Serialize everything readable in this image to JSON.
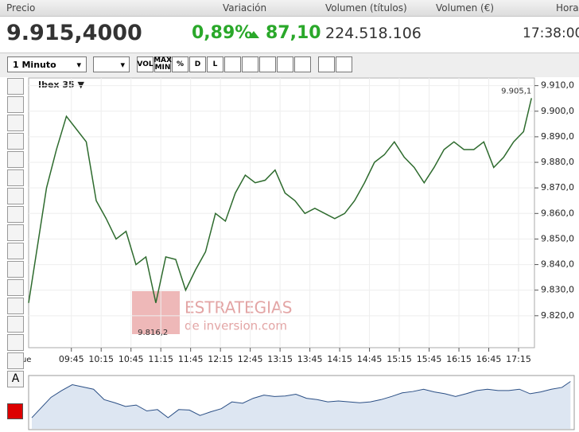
{
  "header": {
    "labels": [
      "Precio",
      "Variación",
      "Volumen (títulos)",
      "Volumen (€)",
      "Hora"
    ],
    "price": "9.915,4000",
    "change_pct": "0,89%",
    "change_abs": "87,10",
    "volume": "224.518.106",
    "time": "17:38:00"
  },
  "toolbar": {
    "interval": "1 Minuto",
    "buttons": [
      "VOL",
      "MAX MIN",
      "%",
      "D",
      "L"
    ]
  },
  "tools": {
    "text_tool": "A"
  },
  "watermark": {
    "line1": "ESTRATEGIAS",
    "line2": "de inversion.com"
  },
  "chart_data": {
    "type": "line",
    "title": "Ibex 35 ▼",
    "color": "#2e6b2e",
    "grid": true,
    "day_label": "Jue",
    "x": [
      "09:02",
      "09:10",
      "09:20",
      "09:30",
      "09:40",
      "09:50",
      "10:00",
      "10:10",
      "10:20",
      "10:30",
      "10:40",
      "10:50",
      "11:00",
      "11:10",
      "11:20",
      "11:30",
      "11:40",
      "11:50",
      "12:00",
      "12:10",
      "12:20",
      "12:30",
      "12:40",
      "12:50",
      "13:00",
      "13:10",
      "13:20",
      "13:30",
      "13:40",
      "13:50",
      "14:00",
      "14:10",
      "14:20",
      "14:30",
      "14:40",
      "14:50",
      "15:00",
      "15:10",
      "15:20",
      "15:30",
      "15:40",
      "15:50",
      "16:00",
      "16:10",
      "16:20",
      "16:30",
      "16:40",
      "16:50",
      "17:00",
      "17:10",
      "17:20",
      "17:28"
    ],
    "values": [
      9825,
      9845,
      9870,
      9885,
      9898,
      9893,
      9888,
      9865,
      9858,
      9850,
      9853,
      9840,
      9843,
      9825,
      9843,
      9842,
      9830,
      9838,
      9845,
      9860,
      9857,
      9868,
      9875,
      9872,
      9873,
      9877,
      9868,
      9865,
      9860,
      9862,
      9860,
      9858,
      9860,
      9865,
      9872,
      9880,
      9883,
      9888,
      9882,
      9878,
      9872,
      9878,
      9885,
      9888,
      9885,
      9885,
      9888,
      9878,
      9882,
      9888,
      9892,
      9905.1
    ],
    "xlim": [
      "09:02",
      "17:30"
    ],
    "xticks": [
      "09:45",
      "10:15",
      "10:45",
      "11:15",
      "11:45",
      "12:15",
      "12:45",
      "13:15",
      "13:45",
      "14:15",
      "14:45",
      "15:15",
      "15:45",
      "16:15",
      "16:45",
      "17:15"
    ],
    "ylim": [
      9807.5,
      9913
    ],
    "yticks": [
      {
        "value": 9820,
        "label": "9.820,0"
      },
      {
        "value": 9830,
        "label": "9.830,0"
      },
      {
        "value": 9840,
        "label": "9.840,0"
      },
      {
        "value": 9850,
        "label": "9.850,0"
      },
      {
        "value": 9860,
        "label": "9.860,0"
      },
      {
        "value": 9870,
        "label": "9.870,0"
      },
      {
        "value": 9880,
        "label": "9.880,0"
      },
      {
        "value": 9890,
        "label": "9.890,0"
      },
      {
        "value": 9900,
        "label": "9.900,0"
      },
      {
        "value": 9910,
        "label": "9.910,0"
      }
    ],
    "annotations": [
      {
        "x": "17:28",
        "value": 9905.1,
        "label": "9.905,1"
      },
      {
        "x": "11:07",
        "value": 9816.2,
        "label": "9.816,2"
      }
    ]
  }
}
